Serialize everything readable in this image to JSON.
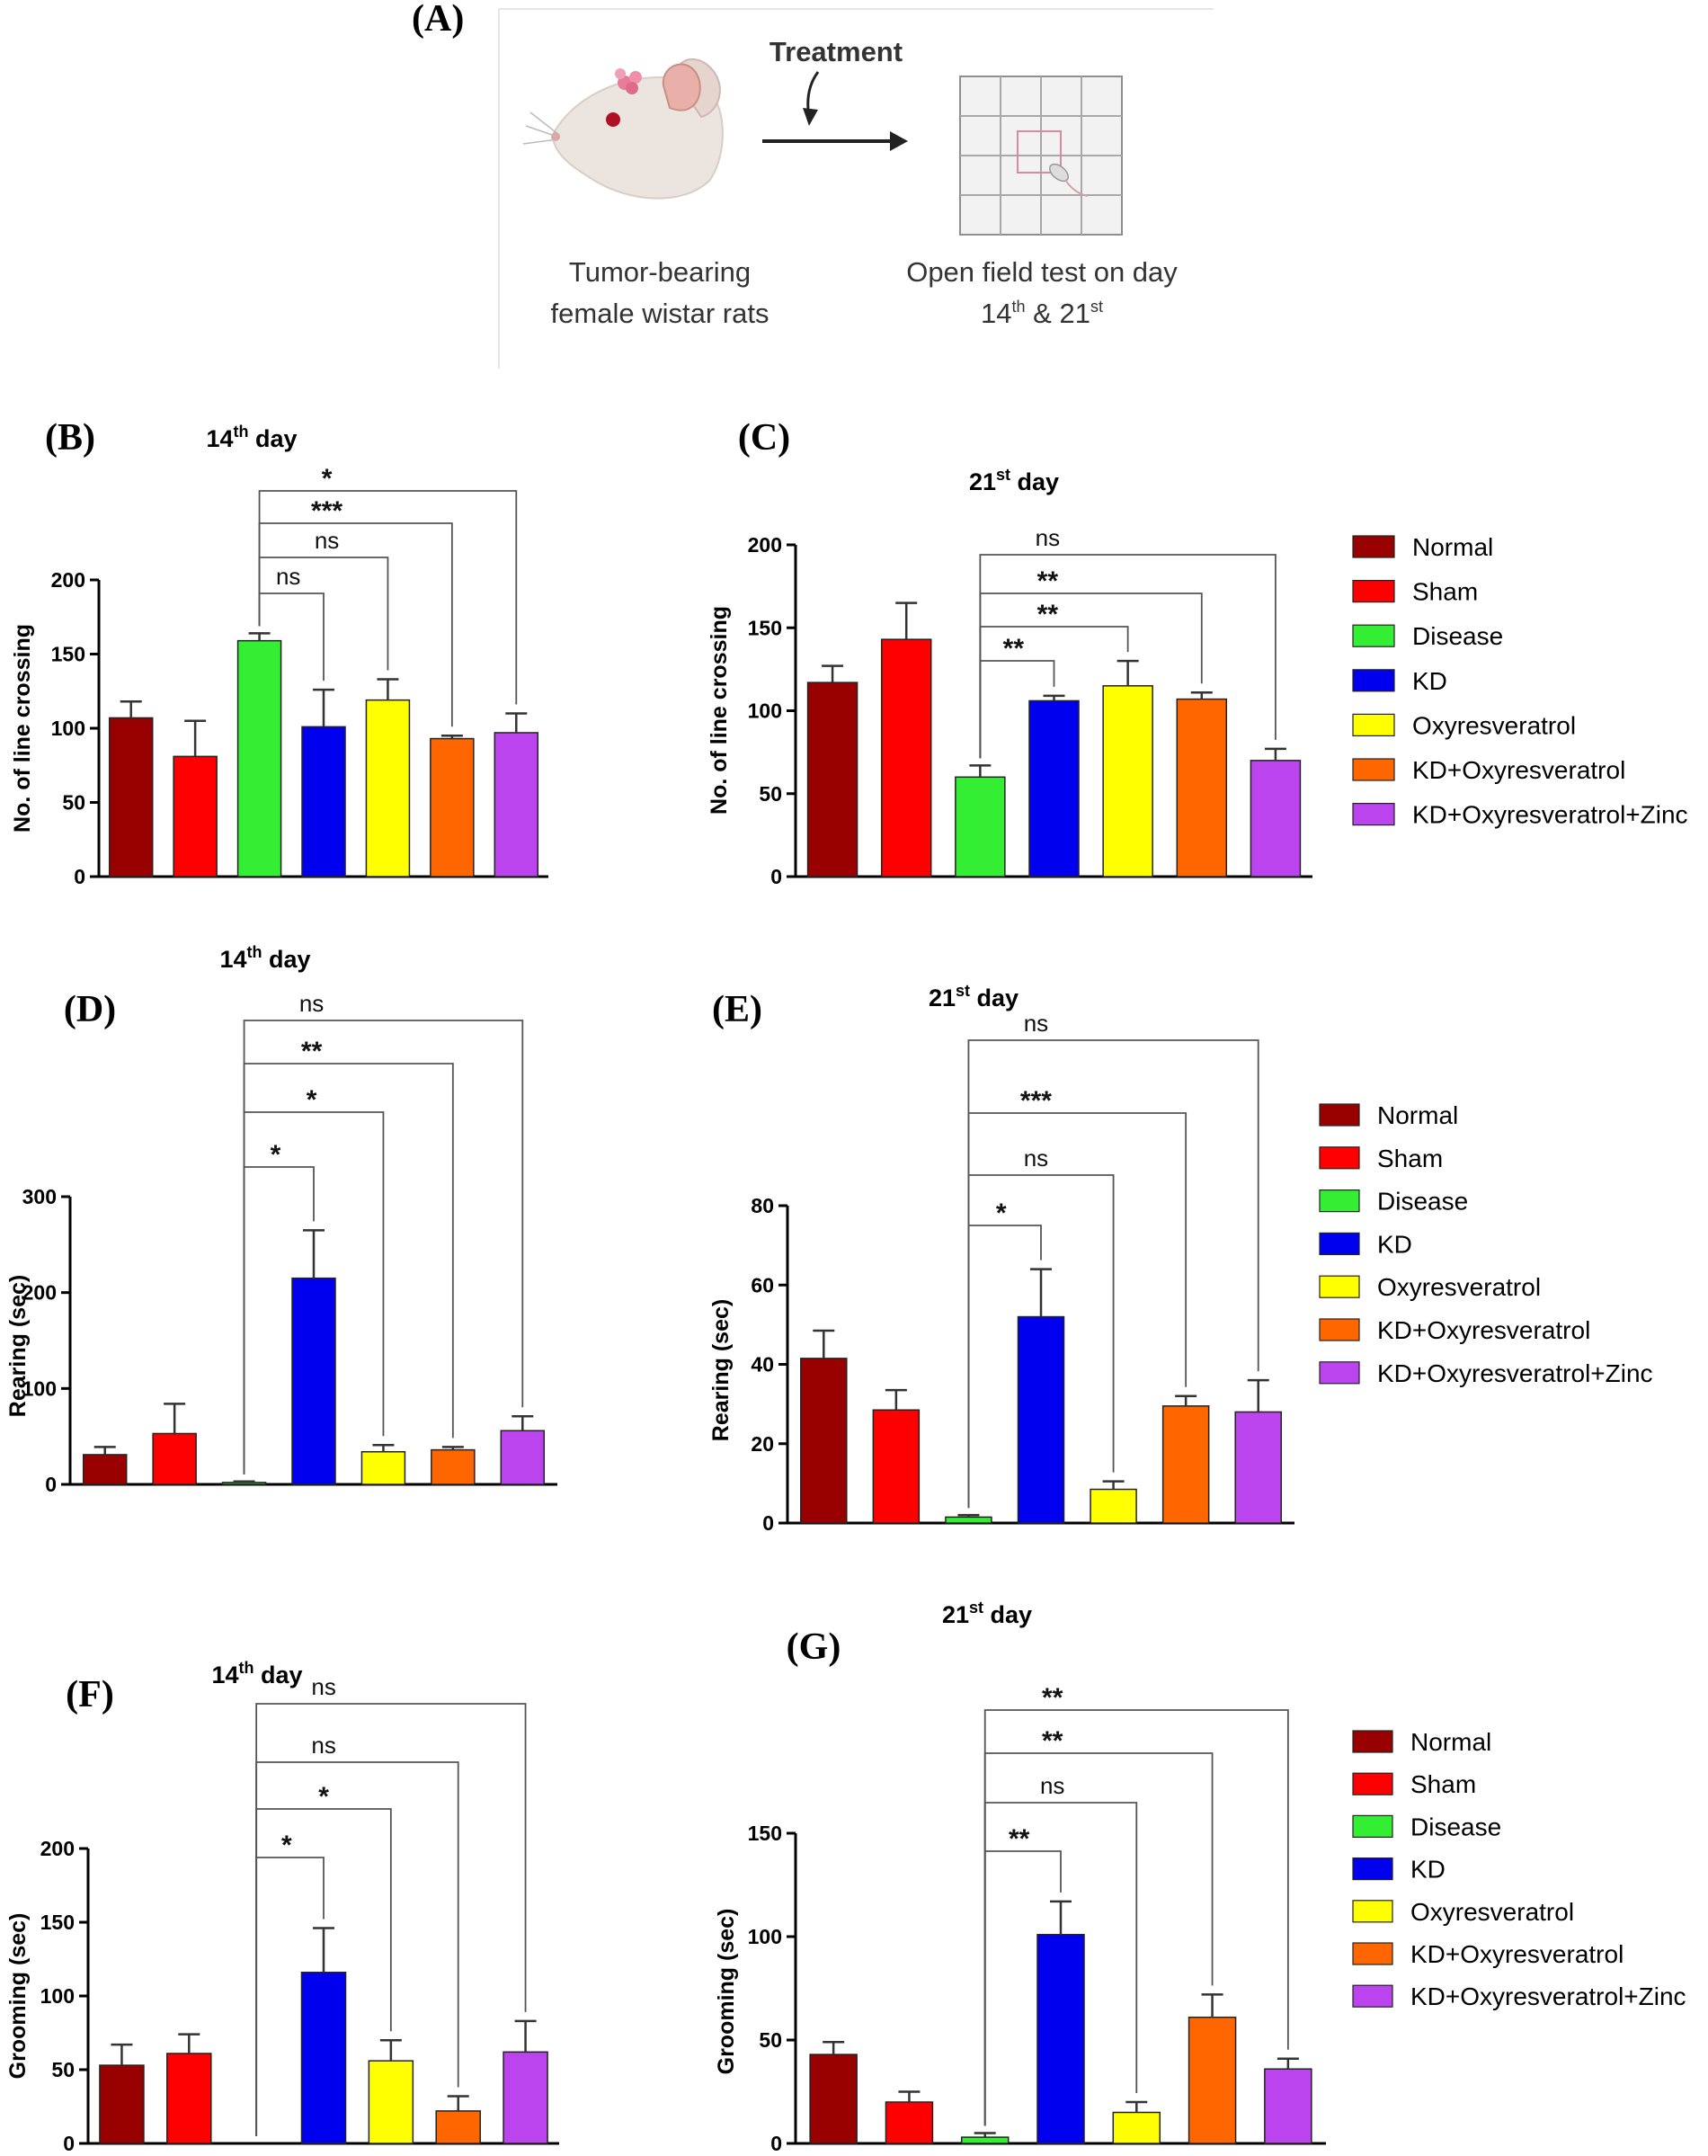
{
  "figure_label": "(A)",
  "schematic": {
    "treatment_label": "Treatment",
    "left_caption": [
      "Tumor-bearing",
      "female wistar rats"
    ],
    "right_caption_line1": "Open field test on day",
    "day1": "14",
    "day1_sup": "th",
    "amp": " & ",
    "day2": "21",
    "day2_sup": "st",
    "colors": {
      "treatment": "#7a3a6e",
      "grid": "#9a9a9a",
      "rat": "#e8e0da",
      "tumor": "#e87a9a"
    }
  },
  "groups": [
    "Normal",
    "Sham",
    "Disease",
    "KD",
    "Oxyresveratrol",
    "KD+Oxyresveratrol",
    "KD+Oxyresveratrol+Zinc"
  ],
  "group_colors": [
    "#990000",
    "#ff0000",
    "#33ee33",
    "#0000ee",
    "#ffff00",
    "#ff6600",
    "#bb44ee"
  ],
  "chart_data": [
    {
      "id": "B",
      "label": "(B)",
      "type": "bar",
      "title_main": "14",
      "title_sup": "th",
      "title_rest": " day",
      "ylabel": "No. of line crossing",
      "ylim": [
        0,
        200
      ],
      "yticks": [
        0,
        50,
        100,
        150,
        200
      ],
      "values": [
        107,
        81,
        159,
        101,
        119,
        93,
        97
      ],
      "errors": [
        11,
        24,
        5,
        25,
        14,
        2,
        13
      ],
      "comparisons": [
        {
          "from": 2,
          "to": 3,
          "label": "ns"
        },
        {
          "from": 2,
          "to": 4,
          "label": "ns"
        },
        {
          "from": 2,
          "to": 5,
          "label": "***"
        },
        {
          "from": 2,
          "to": 6,
          "label": "*"
        }
      ]
    },
    {
      "id": "C",
      "label": "(C)",
      "type": "bar",
      "title_main": "21",
      "title_sup": "st",
      "title_rest": " day",
      "ylabel": "No. of line crossing",
      "ylim": [
        0,
        200
      ],
      "yticks": [
        0,
        50,
        100,
        150,
        200
      ],
      "values": [
        117,
        143,
        60,
        106,
        115,
        107,
        70
      ],
      "errors": [
        10,
        22,
        7,
        3,
        15,
        4,
        7
      ],
      "comparisons": [
        {
          "from": 2,
          "to": 3,
          "label": "**"
        },
        {
          "from": 2,
          "to": 4,
          "label": "**"
        },
        {
          "from": 2,
          "to": 5,
          "label": "**"
        },
        {
          "from": 2,
          "to": 6,
          "label": "ns"
        }
      ]
    },
    {
      "id": "D",
      "label": "(D)",
      "type": "bar",
      "title_main": "14",
      "title_sup": "th",
      "title_rest": " day",
      "ylabel": "Rearing (sec)",
      "ylim": [
        0,
        300
      ],
      "yticks": [
        0,
        100,
        200,
        300
      ],
      "values": [
        31,
        53,
        2,
        215,
        34,
        36,
        56
      ],
      "errors": [
        8,
        31,
        1,
        50,
        7,
        3,
        15
      ],
      "comparisons": [
        {
          "from": 2,
          "to": 3,
          "label": "*"
        },
        {
          "from": 2,
          "to": 4,
          "label": "*"
        },
        {
          "from": 2,
          "to": 5,
          "label": "**"
        },
        {
          "from": 2,
          "to": 6,
          "label": "ns"
        }
      ]
    },
    {
      "id": "E",
      "label": "(E)",
      "type": "bar",
      "title_main": "21",
      "title_sup": "st",
      "title_rest": " day",
      "ylabel": "Rearing (sec)",
      "ylim": [
        0,
        80
      ],
      "yticks": [
        0,
        20,
        40,
        60,
        80
      ],
      "values": [
        41.5,
        28.5,
        1.5,
        52,
        8.5,
        29.5,
        28
      ],
      "errors": [
        7,
        5,
        0.5,
        12,
        2,
        2.5,
        8
      ],
      "comparisons": [
        {
          "from": 2,
          "to": 3,
          "label": "*"
        },
        {
          "from": 2,
          "to": 4,
          "label": "ns"
        },
        {
          "from": 2,
          "to": 5,
          "label": "***"
        },
        {
          "from": 2,
          "to": 6,
          "label": "ns"
        }
      ]
    },
    {
      "id": "F",
      "label": "(F)",
      "type": "bar",
      "title_main": "14",
      "title_sup": "th",
      "title_rest": " day",
      "ylabel": "Grooming (sec)",
      "ylim": [
        0,
        200
      ],
      "yticks": [
        0,
        50,
        100,
        150,
        200
      ],
      "values": [
        53,
        61,
        0,
        116,
        56,
        22,
        62
      ],
      "errors": [
        14,
        13,
        0,
        30,
        14,
        10,
        21
      ],
      "comparisons": [
        {
          "from": 2,
          "to": 3,
          "label": "*"
        },
        {
          "from": 2,
          "to": 4,
          "label": "*"
        },
        {
          "from": 2,
          "to": 5,
          "label": "ns"
        },
        {
          "from": 2,
          "to": 6,
          "label": "ns"
        }
      ]
    },
    {
      "id": "G",
      "label": "(G)",
      "type": "bar",
      "title_main": "21",
      "title_sup": "st",
      "title_rest": " day",
      "ylabel": "Grooming (sec)",
      "ylim": [
        0,
        150
      ],
      "yticks": [
        0,
        50,
        100,
        150
      ],
      "values": [
        43,
        20,
        3,
        101,
        15,
        61,
        36
      ],
      "errors": [
        6,
        5,
        2,
        16,
        5,
        11,
        5
      ],
      "comparisons": [
        {
          "from": 2,
          "to": 3,
          "label": "**"
        },
        {
          "from": 2,
          "to": 4,
          "label": "ns"
        },
        {
          "from": 2,
          "to": 5,
          "label": "**"
        },
        {
          "from": 2,
          "to": 6,
          "label": "**"
        }
      ]
    }
  ]
}
